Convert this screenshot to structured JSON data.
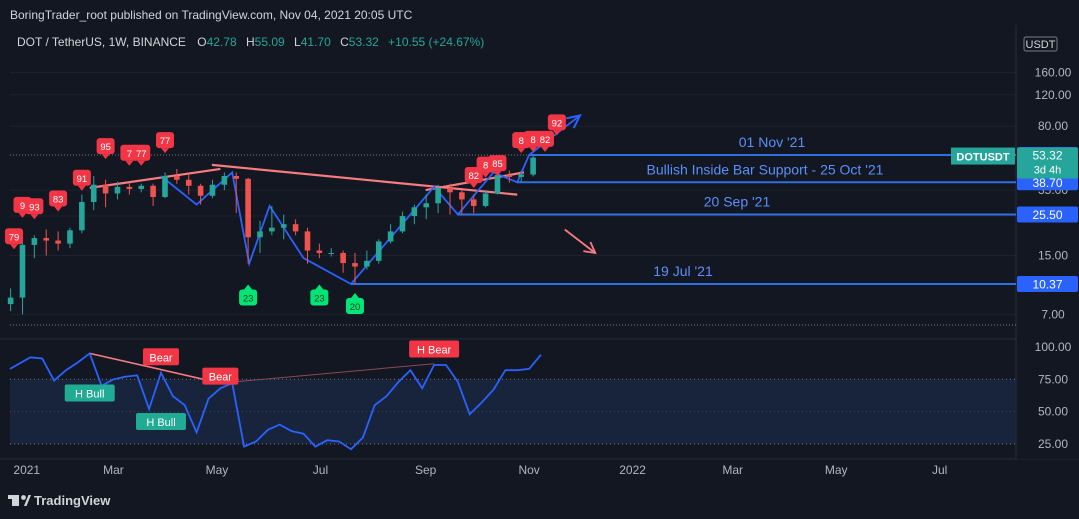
{
  "header": {
    "published": "BoringTrader_root published on TradingView.com, Nov 04, 2021 20:05 UTC"
  },
  "legend": {
    "symbol": "DOT / TetherUS, 1W, BINANCE",
    "o_label": "O",
    "o_value": "42.78",
    "h_label": "H",
    "h_value": "55.09",
    "l_label": "L",
    "l_value": "41.70",
    "c_label": "C",
    "c_value": "53.32",
    "change": "+10.55 (+24.67%)"
  },
  "footer": {
    "brand": "TradingView"
  },
  "colors": {
    "background": "#131722",
    "up": "#26a69a",
    "down": "#ef5350",
    "trend": "#2962ff",
    "resistance": "#f77c80",
    "hline": "#2f6fe4",
    "label_bg": "#2962ff",
    "current_bg": "#26a69a",
    "bear_badge": "#f23645",
    "bull_badge": "#22ab94",
    "green_marker": "#00e676"
  },
  "chart_data": {
    "type": "candlestick",
    "scale": "log",
    "currency": "USDT",
    "price_axis": {
      "ticks": [
        "160.00",
        "120.00",
        "80.00",
        "35.00",
        "25.00",
        "15.00",
        "7.00"
      ],
      "tick_values": [
        160,
        120,
        80,
        35,
        25,
        15,
        7
      ],
      "range": [
        5.5,
        170
      ]
    },
    "time_axis": {
      "labels": [
        "2021",
        "Mar",
        "May",
        "Jul",
        "Sep",
        "Nov",
        "2022",
        "Mar",
        "May",
        "Jul"
      ],
      "label_dates": [
        "2021-01-01",
        "2021-03-01",
        "2021-05-01",
        "2021-07-01",
        "2021-09-01",
        "2021-11-01",
        "2022-01-01",
        "2022-03-01",
        "2022-05-01",
        "2022-07-01"
      ],
      "range": [
        "2020-12-30",
        "2022-08-15"
      ]
    },
    "candles": [
      {
        "date": "2020-12-28",
        "o": 8.0,
        "h": 9.8,
        "l": 7.3,
        "c": 8.7
      },
      {
        "date": "2021-01-04",
        "o": 8.7,
        "h": 18.5,
        "l": 7.0,
        "c": 17.2
      },
      {
        "date": "2021-01-11",
        "o": 17.2,
        "h": 19.5,
        "l": 14.5,
        "c": 18.8
      },
      {
        "date": "2021-01-18",
        "o": 18.8,
        "h": 21.0,
        "l": 15.0,
        "c": 18.2
      },
      {
        "date": "2021-01-25",
        "o": 18.2,
        "h": 20.5,
        "l": 16.0,
        "c": 17.5
      },
      {
        "date": "2021-02-01",
        "o": 17.5,
        "h": 21.5,
        "l": 16.5,
        "c": 20.8
      },
      {
        "date": "2021-02-08",
        "o": 20.8,
        "h": 33.0,
        "l": 20.0,
        "c": 30.0
      },
      {
        "date": "2021-02-15",
        "o": 30.0,
        "h": 42.0,
        "l": 27.0,
        "c": 37.5
      },
      {
        "date": "2021-02-22",
        "o": 37.5,
        "h": 40.0,
        "l": 28.0,
        "c": 33.5
      },
      {
        "date": "2021-03-01",
        "o": 33.5,
        "h": 39.0,
        "l": 31.0,
        "c": 36.5
      },
      {
        "date": "2021-03-08",
        "o": 36.5,
        "h": 38.5,
        "l": 33.0,
        "c": 35.5
      },
      {
        "date": "2021-03-15",
        "o": 35.5,
        "h": 38.0,
        "l": 34.0,
        "c": 37.0
      },
      {
        "date": "2021-03-22",
        "o": 37.0,
        "h": 38.0,
        "l": 28.5,
        "c": 32.0
      },
      {
        "date": "2021-03-29",
        "o": 32.0,
        "h": 44.0,
        "l": 31.5,
        "c": 42.0
      },
      {
        "date": "2021-04-05",
        "o": 42.0,
        "h": 46.0,
        "l": 38.0,
        "c": 40.0
      },
      {
        "date": "2021-04-12",
        "o": 40.0,
        "h": 43.0,
        "l": 33.0,
        "c": 37.0
      },
      {
        "date": "2021-04-19",
        "o": 37.0,
        "h": 38.0,
        "l": 29.0,
        "c": 32.5
      },
      {
        "date": "2021-04-26",
        "o": 32.5,
        "h": 40.0,
        "l": 31.5,
        "c": 37.5
      },
      {
        "date": "2021-05-03",
        "o": 37.5,
        "h": 44.0,
        "l": 35.0,
        "c": 42.0
      },
      {
        "date": "2021-05-10",
        "o": 42.0,
        "h": 44.0,
        "l": 26.0,
        "c": 40.5
      },
      {
        "date": "2021-05-17",
        "o": 40.5,
        "h": 41.0,
        "l": 13.5,
        "c": 19.0
      },
      {
        "date": "2021-05-24",
        "o": 19.0,
        "h": 23.5,
        "l": 15.5,
        "c": 20.5
      },
      {
        "date": "2021-05-31",
        "o": 20.5,
        "h": 28.5,
        "l": 19.5,
        "c": 21.5
      },
      {
        "date": "2021-06-07",
        "o": 21.5,
        "h": 25.5,
        "l": 18.5,
        "c": 22.5
      },
      {
        "date": "2021-06-14",
        "o": 22.5,
        "h": 24.0,
        "l": 19.5,
        "c": 20.5
      },
      {
        "date": "2021-06-21",
        "o": 20.5,
        "h": 21.5,
        "l": 13.5,
        "c": 16.0
      },
      {
        "date": "2021-06-28",
        "o": 16.0,
        "h": 17.5,
        "l": 14.5,
        "c": 15.5
      },
      {
        "date": "2021-07-05",
        "o": 15.5,
        "h": 16.5,
        "l": 14.8,
        "c": 15.5
      },
      {
        "date": "2021-07-12",
        "o": 15.5,
        "h": 16.0,
        "l": 12.0,
        "c": 13.6
      },
      {
        "date": "2021-07-19",
        "o": 13.6,
        "h": 15.5,
        "l": 10.37,
        "c": 13.0
      },
      {
        "date": "2021-07-26",
        "o": 13.0,
        "h": 16.0,
        "l": 12.5,
        "c": 14.0
      },
      {
        "date": "2021-08-02",
        "o": 14.0,
        "h": 18.5,
        "l": 13.5,
        "c": 18.0
      },
      {
        "date": "2021-08-09",
        "o": 18.0,
        "h": 22.5,
        "l": 17.5,
        "c": 20.5
      },
      {
        "date": "2021-08-16",
        "o": 20.5,
        "h": 26.5,
        "l": 20.0,
        "c": 25.0
      },
      {
        "date": "2021-08-23",
        "o": 25.0,
        "h": 29.0,
        "l": 22.5,
        "c": 28.0
      },
      {
        "date": "2021-08-30",
        "o": 28.0,
        "h": 33.0,
        "l": 24.0,
        "c": 29.5
      },
      {
        "date": "2021-09-06",
        "o": 29.5,
        "h": 37.5,
        "l": 26.0,
        "c": 36.0
      },
      {
        "date": "2021-09-13",
        "o": 36.0,
        "h": 38.0,
        "l": 25.5,
        "c": 34.0
      },
      {
        "date": "2021-09-20",
        "o": 34.0,
        "h": 35.0,
        "l": 25.5,
        "c": 31.0
      },
      {
        "date": "2021-09-27",
        "o": 31.0,
        "h": 33.0,
        "l": 26.0,
        "c": 28.5
      },
      {
        "date": "2021-10-04",
        "o": 28.5,
        "h": 35.0,
        "l": 28.0,
        "c": 33.5
      },
      {
        "date": "2021-10-11",
        "o": 33.5,
        "h": 44.0,
        "l": 33.0,
        "c": 42.5
      },
      {
        "date": "2021-10-18",
        "o": 42.5,
        "h": 45.0,
        "l": 38.5,
        "c": 41.5
      },
      {
        "date": "2021-10-25",
        "o": 41.5,
        "h": 45.0,
        "l": 38.7,
        "c": 42.78
      },
      {
        "date": "2021-11-01",
        "o": 42.78,
        "h": 55.09,
        "l": 41.7,
        "c": 53.32
      }
    ],
    "price_levels": [
      {
        "value": 55.09,
        "label": "55.09",
        "note": "01 Nov '21"
      },
      {
        "value": 38.7,
        "label": "38.70",
        "note": "Bullish Inside Bar Support - 25 Oct '21"
      },
      {
        "value": 25.5,
        "label": "25.50",
        "note": "20 Sep '21"
      },
      {
        "value": 10.37,
        "label": "10.37",
        "note": "19 Jul '21"
      }
    ],
    "current_price": {
      "symbol": "DOTUSDT",
      "price": "53.32",
      "countdown": "3d 4h"
    },
    "trend_lines": [
      {
        "role": "resistance",
        "from": {
          "date": "2021-02-15",
          "price": 36.0
        },
        "to": {
          "date": "2021-05-03",
          "price": 46.0
        }
      },
      {
        "role": "resistance",
        "from": {
          "date": "2021-04-28",
          "price": 48.5
        },
        "to": {
          "date": "2021-10-25",
          "price": 33.0
        }
      },
      {
        "role": "resistance",
        "from": {
          "date": "2021-09-01",
          "price": 35.0
        },
        "to": {
          "date": "2021-10-29",
          "price": 44.0
        }
      },
      {
        "role": "path",
        "points": [
          {
            "date": "2021-03-29",
            "price": 42.0
          },
          {
            "date": "2021-04-19",
            "price": 29.0
          },
          {
            "date": "2021-05-10",
            "price": 44.0
          },
          {
            "date": "2021-05-20",
            "price": 13.5
          },
          {
            "date": "2021-06-01",
            "price": 28.5
          },
          {
            "date": "2021-06-21",
            "price": 14.5
          },
          {
            "date": "2021-07-19",
            "price": 10.37
          },
          {
            "date": "2021-09-06",
            "price": 36.5
          },
          {
            "date": "2021-09-20",
            "price": 25.5
          },
          {
            "date": "2021-10-11",
            "price": 44.0
          },
          {
            "date": "2021-10-25",
            "price": 38.7
          },
          {
            "date": "2021-11-01",
            "price": 55.09
          },
          {
            "date": "2021-12-01",
            "price": 92.0
          }
        ],
        "arrow": true
      },
      {
        "role": "projection",
        "from": {
          "date": "2021-11-22",
          "price": 21.0
        },
        "to": {
          "date": "2021-12-10",
          "price": 15.5
        },
        "arrow": true
      }
    ],
    "signal_markers": {
      "bearish": [
        {
          "date": "2020-12-30",
          "price": 19.0,
          "label": "79"
        },
        {
          "date": "2021-01-04",
          "price": 28.5,
          "label": "9"
        },
        {
          "date": "2021-01-11",
          "price": 28.0,
          "label": "93"
        },
        {
          "date": "2021-01-25",
          "price": 31.0,
          "label": "83"
        },
        {
          "date": "2021-02-08",
          "price": 40.5,
          "label": "91"
        },
        {
          "date": "2021-02-22",
          "price": 61.0,
          "label": "95"
        },
        {
          "date": "2021-03-08",
          "price": 56.0,
          "label": "7"
        },
        {
          "date": "2021-03-15",
          "price": 56.0,
          "label": "77"
        },
        {
          "date": "2021-03-29",
          "price": 66.0,
          "label": "77"
        },
        {
          "date": "2021-09-27",
          "price": 42.0,
          "label": "82"
        },
        {
          "date": "2021-10-04",
          "price": 48.0,
          "label": "8"
        },
        {
          "date": "2021-10-11",
          "price": 49.0,
          "label": "85"
        },
        {
          "date": "2021-10-25",
          "price": 66.0,
          "label": "8"
        },
        {
          "date": "2021-11-01",
          "price": 67.0,
          "label": "8"
        },
        {
          "date": "2021-11-08",
          "price": 67.0,
          "label": "82"
        },
        {
          "date": "2021-11-15",
          "price": 83.0,
          "label": "92"
        }
      ],
      "bullish": [
        {
          "date": "2021-05-17",
          "price": 8.6,
          "label": "23"
        },
        {
          "date": "2021-06-28",
          "price": 8.6,
          "label": "23"
        },
        {
          "date": "2021-07-19",
          "price": 7.7,
          "label": "20"
        }
      ]
    },
    "oscillator": {
      "type": "line",
      "range": [
        15,
        103
      ],
      "ticks": [
        "100.00",
        "75.00",
        "50.00",
        "25.00"
      ],
      "tick_values": [
        100,
        75,
        50,
        25
      ],
      "band": [
        25,
        75
      ],
      "values": [
        {
          "date": "2020-12-30",
          "value": 83
        },
        {
          "date": "2021-01-11",
          "value": 92
        },
        {
          "date": "2021-01-18",
          "value": 91
        },
        {
          "date": "2021-01-25",
          "value": 74
        },
        {
          "date": "2021-02-01",
          "value": 82
        },
        {
          "date": "2021-02-08",
          "value": 88
        },
        {
          "date": "2021-02-15",
          "value": 95
        },
        {
          "date": "2021-02-22",
          "value": 70
        },
        {
          "date": "2021-03-01",
          "value": 75
        },
        {
          "date": "2021-03-08",
          "value": 77
        },
        {
          "date": "2021-03-15",
          "value": 78
        },
        {
          "date": "2021-03-22",
          "value": 52
        },
        {
          "date": "2021-03-29",
          "value": 80
        },
        {
          "date": "2021-04-05",
          "value": 62
        },
        {
          "date": "2021-04-12",
          "value": 55
        },
        {
          "date": "2021-04-19",
          "value": 34
        },
        {
          "date": "2021-04-26",
          "value": 60
        },
        {
          "date": "2021-05-03",
          "value": 68
        },
        {
          "date": "2021-05-10",
          "value": 72
        },
        {
          "date": "2021-05-17",
          "value": 23
        },
        {
          "date": "2021-05-24",
          "value": 27
        },
        {
          "date": "2021-05-31",
          "value": 36
        },
        {
          "date": "2021-06-07",
          "value": 40
        },
        {
          "date": "2021-06-14",
          "value": 35
        },
        {
          "date": "2021-06-21",
          "value": 33
        },
        {
          "date": "2021-06-28",
          "value": 23
        },
        {
          "date": "2021-07-05",
          "value": 28
        },
        {
          "date": "2021-07-12",
          "value": 27
        },
        {
          "date": "2021-07-19",
          "value": 21
        },
        {
          "date": "2021-07-26",
          "value": 30
        },
        {
          "date": "2021-08-02",
          "value": 55
        },
        {
          "date": "2021-08-09",
          "value": 62
        },
        {
          "date": "2021-08-16",
          "value": 73
        },
        {
          "date": "2021-08-23",
          "value": 82
        },
        {
          "date": "2021-08-30",
          "value": 68
        },
        {
          "date": "2021-09-06",
          "value": 86
        },
        {
          "date": "2021-09-13",
          "value": 86
        },
        {
          "date": "2021-09-20",
          "value": 73
        },
        {
          "date": "2021-09-27",
          "value": 48
        },
        {
          "date": "2021-10-04",
          "value": 57
        },
        {
          "date": "2021-10-11",
          "value": 67
        },
        {
          "date": "2021-10-18",
          "value": 82
        },
        {
          "date": "2021-10-25",
          "value": 82
        },
        {
          "date": "2021-11-01",
          "value": 83
        },
        {
          "date": "2021-11-08",
          "value": 94
        }
      ],
      "divergence_lines": [
        {
          "kind": "bear",
          "from": {
            "date": "2021-02-15",
            "value": 95
          },
          "to": {
            "date": "2021-05-03",
            "value": 72
          }
        },
        {
          "kind": "hidden-bear",
          "from": {
            "date": "2021-05-03",
            "value": 72
          },
          "to": {
            "date": "2021-09-06",
            "value": 87
          }
        }
      ],
      "labels": [
        {
          "text": "Bear",
          "kind": "bear",
          "date": "2021-03-29",
          "value": 92
        },
        {
          "text": "Bear",
          "kind": "bear",
          "date": "2021-05-03",
          "value": 77
        },
        {
          "text": "H Bear",
          "kind": "bear",
          "date": "2021-09-06",
          "value": 98
        },
        {
          "text": "H Bull",
          "kind": "bull",
          "date": "2021-02-15",
          "value": 64
        },
        {
          "text": "H Bull",
          "kind": "bull",
          "date": "2021-03-29",
          "value": 42
        }
      ]
    }
  }
}
